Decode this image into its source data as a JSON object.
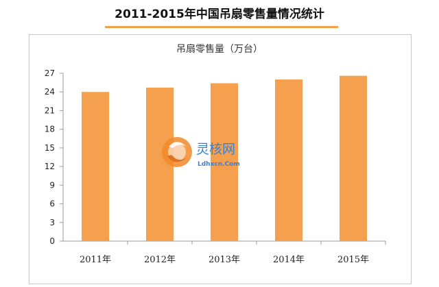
{
  "page": {
    "title": "2011-2015年中国吊扇零售量情况统计"
  },
  "watermark": {
    "name_cn": "灵核网",
    "domain": "Ldhxcn.Com"
  },
  "colors": {
    "bar": "#f5a04f",
    "axis": "#9a9a9a",
    "title_underline": "#f0a24b",
    "watermark_text": "#3a7fd0"
  },
  "chart_data": {
    "type": "bar",
    "title": "吊扇零售量（万台）",
    "xlabel": "",
    "ylabel": "",
    "categories": [
      "2011年",
      "2012年",
      "2013年",
      "2014年",
      "2015年"
    ],
    "values": [
      24.0,
      24.7,
      25.4,
      26.0,
      26.6
    ],
    "ylim": [
      0,
      27
    ],
    "yticks": [
      "0",
      "3",
      "6",
      "9",
      "12",
      "15",
      "18",
      "21",
      "24",
      "27"
    ],
    "grid": false,
    "legend": "none"
  }
}
